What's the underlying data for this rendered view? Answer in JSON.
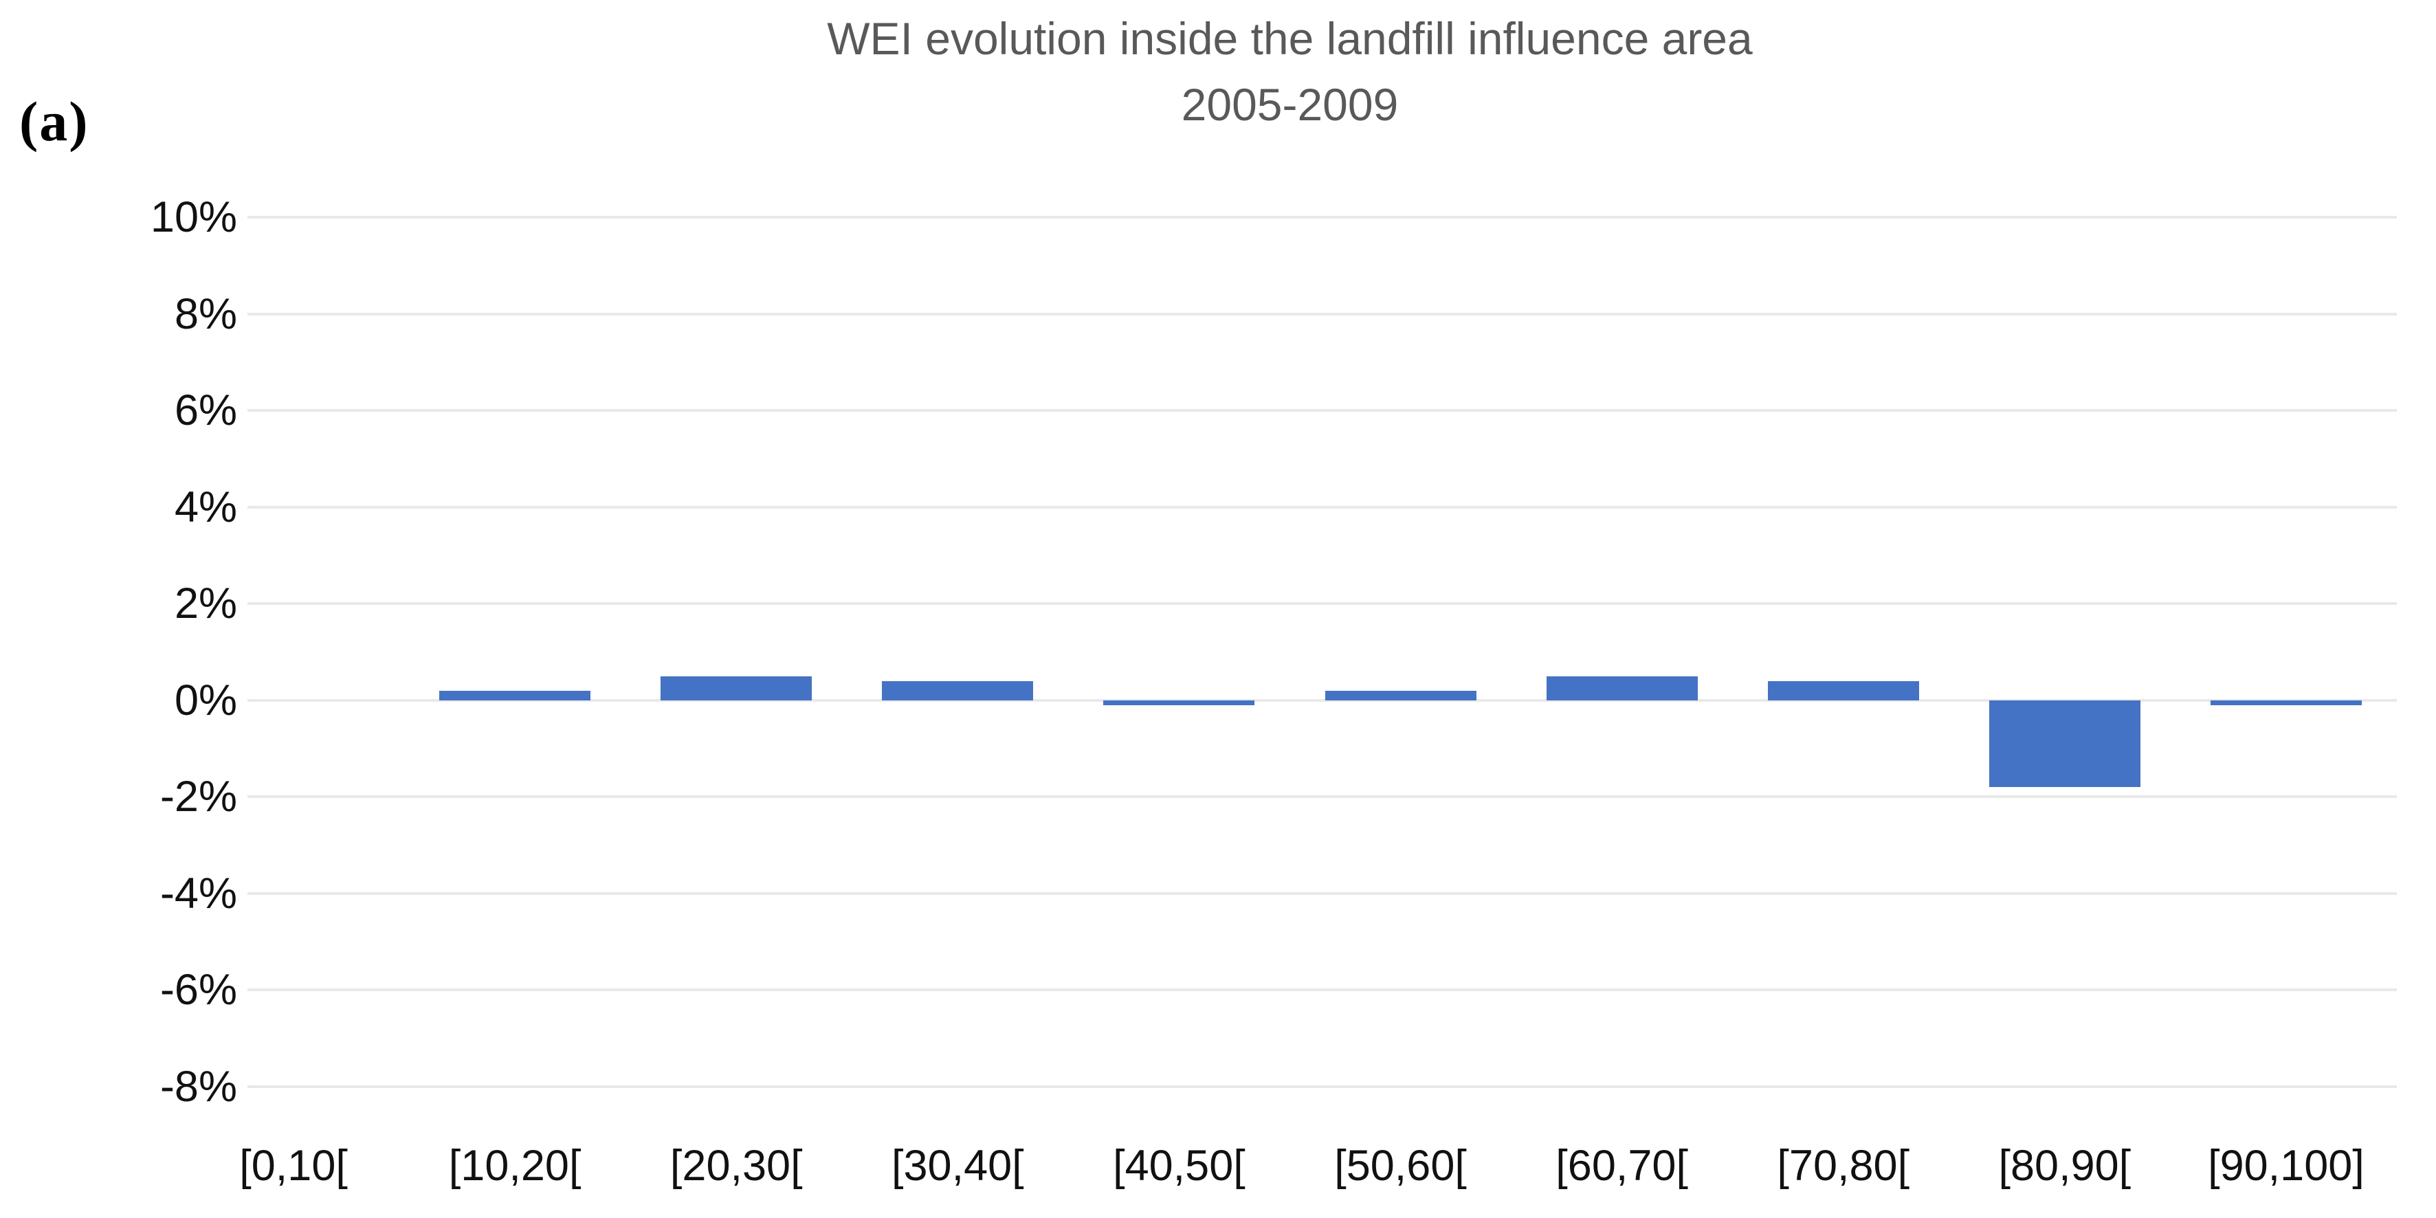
{
  "panel_label": "(a)",
  "chart_data": {
    "type": "bar",
    "title": "WEI evolution inside the landfill influence area",
    "subtitle": "2005-2009",
    "categories": [
      "[0,10[",
      "[10,20[",
      "[20,30[",
      "[30,40[",
      "[40,50[",
      "[50,60[",
      "[60,70[",
      "[70,80[",
      "[80,90[",
      "[90,100]"
    ],
    "values": [
      0.0,
      0.2,
      0.5,
      0.4,
      -0.1,
      0.2,
      0.5,
      0.4,
      -1.8,
      -0.1
    ],
    "unit": "%",
    "xlabel": "",
    "ylabel": "",
    "ylim": [
      -8,
      10
    ],
    "ytick_step": 2,
    "ytick_labels": [
      "10%",
      "8%",
      "6%",
      "4%",
      "2%",
      "0%",
      "-2%",
      "-4%",
      "-6%",
      "-8%"
    ],
    "grid": "horizontal",
    "legend": "none",
    "bar_color": "#4472C4",
    "gridline_color": "#E9E9E9",
    "title_color": "#595959",
    "axis_text_color": "#111111"
  }
}
